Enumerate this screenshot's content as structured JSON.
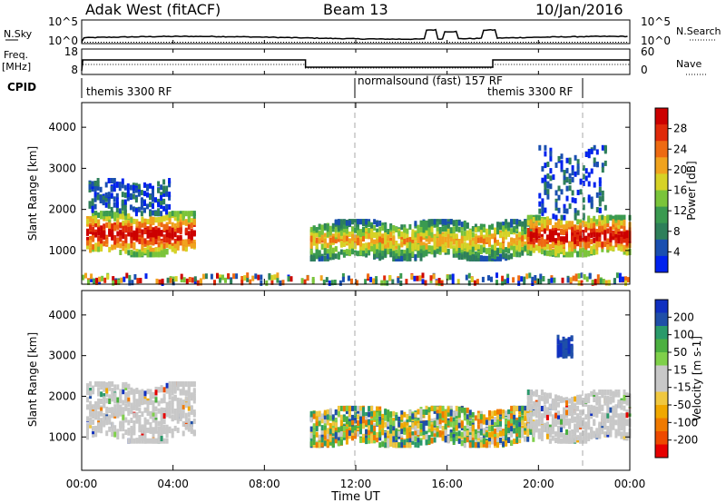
{
  "header": {
    "station": "Adak West (fitACF)",
    "beam": "Beam 13",
    "date": "10/Jan/2016"
  },
  "noise_panel": {
    "left_label": "N.Sky",
    "right_label": "N.Search",
    "left_ticks": [
      "10^5",
      "10^0"
    ],
    "right_ticks": [
      "10^5",
      "10^0"
    ]
  },
  "freq_panel": {
    "left_label_line1": "Freq.",
    "left_label_line2": "[MHz]",
    "right_label": "Nave",
    "left_ticks": [
      "18",
      "8"
    ],
    "right_ticks": [
      "60",
      "0"
    ]
  },
  "cpid_panel": {
    "label": "CPID",
    "programs": [
      {
        "name": "themis 3300 RF"
      },
      {
        "name": "normalsound (fast) 157 RF"
      },
      {
        "name": "themis 3300 RF"
      }
    ]
  },
  "colors": {
    "power": [
      "#0022ee",
      "#1a4fb0",
      "#2e7f5a",
      "#3a9a50",
      "#7ac43a",
      "#d6d226",
      "#f0a31e",
      "#ee6a12",
      "#e02a0a",
      "#cc0000"
    ],
    "velocity_scale": [
      "#e60000",
      "#ee4a00",
      "#f07a00",
      "#f0a800",
      "#f0c840",
      "#c8c8c8",
      "#c8c8c8",
      "#7fd04a",
      "#4cb040",
      "#2a9a6a",
      "#1f4fa8",
      "#1030c0"
    ],
    "axis": "#000000",
    "dashed_marker": "#aaaaaa"
  },
  "chart_data": [
    {
      "type": "heatmap",
      "name": "Power",
      "ylabel": "Slant Range [km]",
      "ylim": [
        180,
        4600
      ],
      "yticks": [
        1000,
        2000,
        3000,
        4000
      ],
      "colorbar_label": "Power [dB]",
      "colorbar_ticks": [
        "28",
        "24",
        "20",
        "16",
        "12",
        "8",
        "4"
      ],
      "colorbar_range": [
        0,
        30
      ],
      "regions": [
        {
          "t": [
            0.2,
            5.0
          ],
          "range": [
            900,
            1900
          ],
          "level": "high"
        },
        {
          "t": [
            0.3,
            3.8
          ],
          "range": [
            1900,
            2700
          ],
          "level": "patchy"
        },
        {
          "t": [
            10.0,
            19.8
          ],
          "range": [
            800,
            1700
          ],
          "level": "medium"
        },
        {
          "t": [
            19.5,
            24.0
          ],
          "range": [
            900,
            1800
          ],
          "level": "high"
        },
        {
          "t": [
            20.0,
            23.0
          ],
          "range": [
            1800,
            3500
          ],
          "level": "patchy"
        },
        {
          "t": [
            0.0,
            24.0
          ],
          "range": [
            200,
            400
          ],
          "level": "ground"
        }
      ]
    },
    {
      "type": "heatmap",
      "name": "Velocity",
      "ylabel": "Slant Range [km]",
      "ylim": [
        180,
        4600
      ],
      "yticks": [
        1000,
        2000,
        3000,
        4000
      ],
      "colorbar_label": "Velocity [m s-1]",
      "colorbar_ticks": [
        "200",
        "100",
        "50",
        "15",
        "-15",
        "-50",
        "-100",
        "-200"
      ],
      "colorbar_range": [
        -250,
        250
      ],
      "regions": [
        {
          "t": [
            0.2,
            5.0
          ],
          "range": [
            900,
            2300
          ],
          "velocity": "near zero"
        },
        {
          "t": [
            10.0,
            19.8
          ],
          "range": [
            800,
            1700
          ],
          "velocity": "negative"
        },
        {
          "t": [
            19.5,
            24.0
          ],
          "range": [
            900,
            2100
          ],
          "velocity": "near zero"
        },
        {
          "t": [
            20.8,
            21.5
          ],
          "range": [
            3000,
            3500
          ],
          "velocity": "positive"
        }
      ]
    }
  ],
  "time_axis": {
    "title": "Time UT",
    "ticks": [
      "00:00",
      "04:00",
      "08:00",
      "12:00",
      "16:00",
      "20:00",
      "00:00"
    ],
    "range_hours": [
      0,
      24
    ]
  }
}
